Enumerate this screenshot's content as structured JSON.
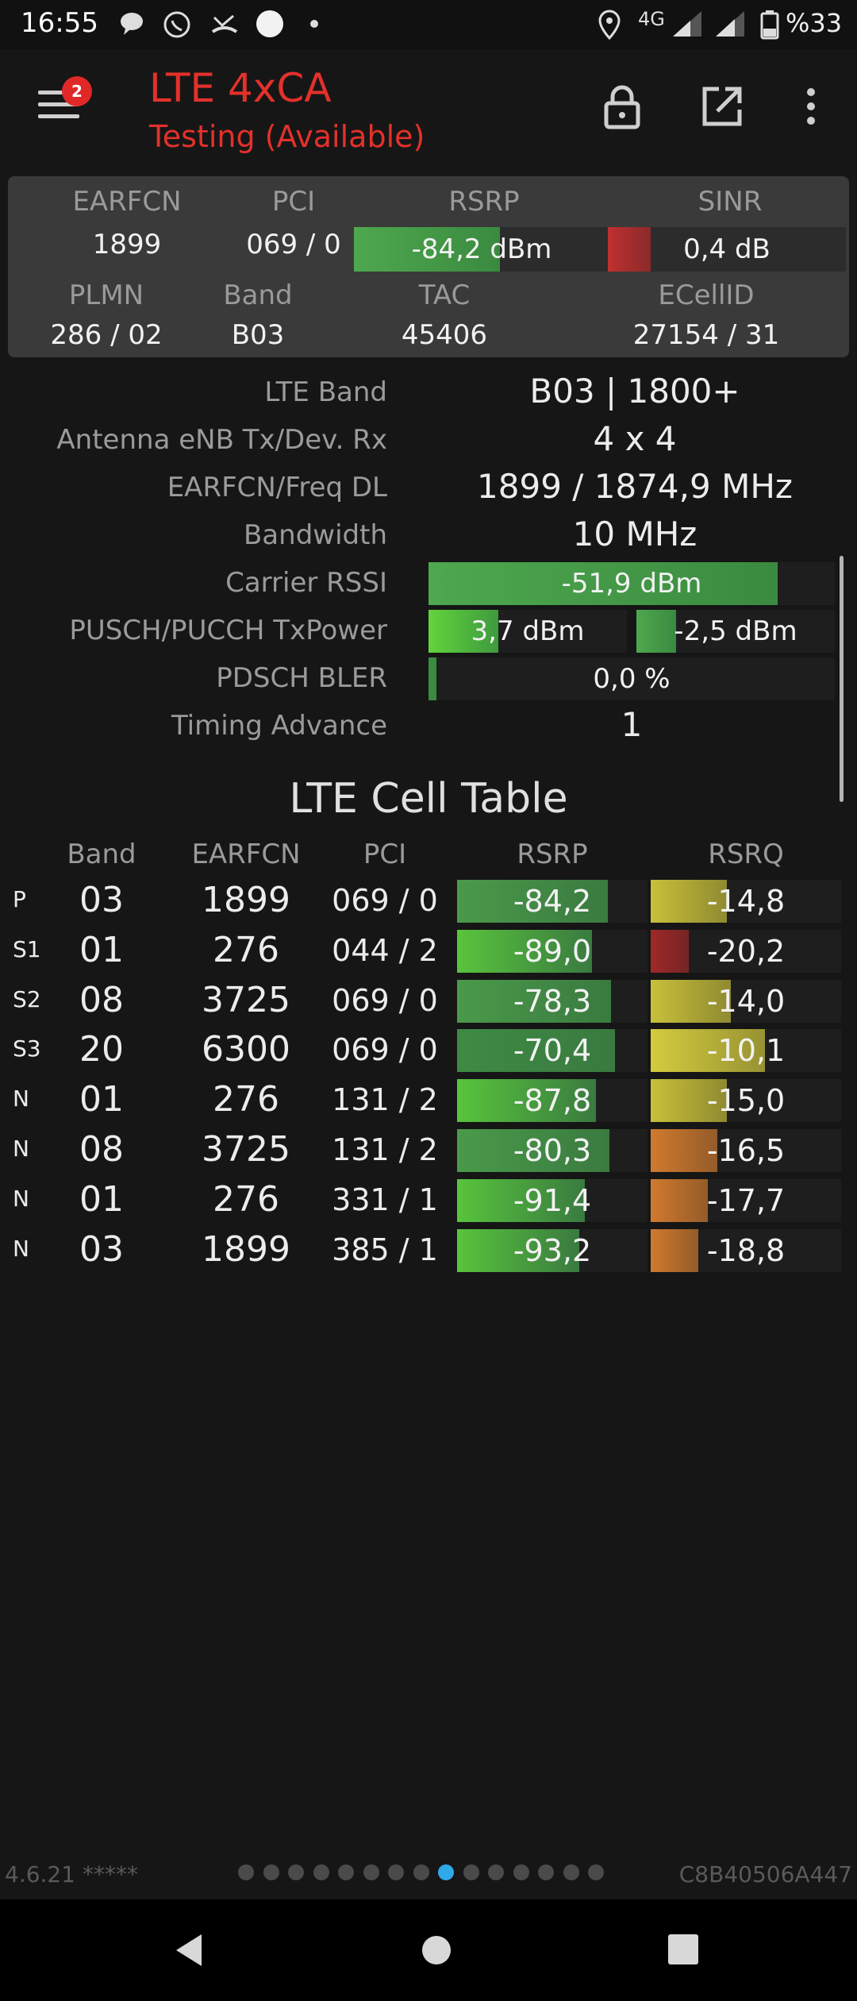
{
  "status_bar": {
    "time": "16:55",
    "network": "4G",
    "battery": "%33"
  },
  "app": {
    "title": "LTE 4xCA",
    "subtitle": "Testing (Available)",
    "notification_count": "2"
  },
  "summary": {
    "headers": [
      "EARFCN",
      "PCI",
      "RSRP",
      "SINR"
    ],
    "earfcn": "1899",
    "pci": "069 / 0",
    "rsrp": "-84,2 dBm",
    "sinr": "0,4 dB",
    "rsrp_fill": 0.57,
    "sinr_fill": 0.18,
    "headers2": [
      "PLMN",
      "Band",
      "TAC",
      "ECellID"
    ],
    "plmn": "286 / 02",
    "band": "B03",
    "tac": "45406",
    "ecellid": "27154 / 31"
  },
  "details": {
    "lte_band_label": "LTE Band",
    "lte_band": "B03 | 1800+",
    "antenna_label": "Antenna eNB Tx/Dev. Rx",
    "antenna": "4 x 4",
    "freq_label": "EARFCN/Freq DL",
    "freq": "1899 / 1874,9 MHz",
    "bw_label": "Bandwidth",
    "bw": "10 MHz",
    "rssi_label": "Carrier RSSI",
    "rssi": "-51,9 dBm",
    "rssi_fill": 0.86,
    "txpower_label": "PUSCH/PUCCH TxPower",
    "pusch": "3,7 dBm",
    "pucch": "-2,5 dBm",
    "pusch_fill": 0.35,
    "pucch_fill": 0.2,
    "bler_label": "PDSCH BLER",
    "bler": "0,0 %",
    "bler_fill": 0.02,
    "ta_label": "Timing Advance",
    "ta": "1"
  },
  "cell_table": {
    "title": "LTE Cell Table",
    "headers": [
      "Band",
      "EARFCN",
      "PCI",
      "RSRP",
      "RSRQ"
    ],
    "rows": [
      {
        "type": "P",
        "band": "03",
        "earfcn": "1899",
        "pci": "069 / 0",
        "rsrp": "-84,2",
        "rsrq": "-14,8",
        "rsrp_fill": 0.79,
        "rsrq_fill": 0.4,
        "rsrp_color": "#4a9a4a",
        "rsrq_color": "#c8c03a"
      },
      {
        "type": "S1",
        "band": "01",
        "earfcn": "276",
        "pci": "044 / 2",
        "rsrp": "-89,0",
        "rsrq": "-20,2",
        "rsrp_fill": 0.71,
        "rsrq_fill": 0.2,
        "rsrp_color": "#58c43c",
        "rsrq_color": "#a02828"
      },
      {
        "type": "S2",
        "band": "08",
        "earfcn": "3725",
        "pci": "069 / 0",
        "rsrp": "-78,3",
        "rsrq": "-14,0",
        "rsrp_fill": 0.81,
        "rsrq_fill": 0.42,
        "rsrp_color": "#4a9a4a",
        "rsrq_color": "#c8c03a"
      },
      {
        "type": "S3",
        "band": "20",
        "earfcn": "6300",
        "pci": "069 / 0",
        "rsrp": "-70,4",
        "rsrq": "-10,1",
        "rsrp_fill": 0.83,
        "rsrq_fill": 0.6,
        "rsrp_color": "#3e8a44",
        "rsrq_color": "#d4cc3e"
      },
      {
        "type": "N",
        "band": "01",
        "earfcn": "276",
        "pci": "131 / 2",
        "rsrp": "-87,8",
        "rsrq": "-15,0",
        "rsrp_fill": 0.73,
        "rsrq_fill": 0.4,
        "rsrp_color": "#58c43c",
        "rsrq_color": "#c8c03a"
      },
      {
        "type": "N",
        "band": "08",
        "earfcn": "3725",
        "pci": "131 / 2",
        "rsrp": "-80,3",
        "rsrq": "-16,5",
        "rsrp_fill": 0.8,
        "rsrq_fill": 0.35,
        "rsrp_color": "#4a9a4a",
        "rsrq_color": "#d07a2e"
      },
      {
        "type": "N",
        "band": "01",
        "earfcn": "276",
        "pci": "331 / 1",
        "rsrp": "-91,4",
        "rsrq": "-17,7",
        "rsrp_fill": 0.67,
        "rsrq_fill": 0.3,
        "rsrp_color": "#58c43c",
        "rsrq_color": "#d07a2e"
      },
      {
        "type": "N",
        "band": "03",
        "earfcn": "1899",
        "pci": "385 / 1",
        "rsrp": "-93,2",
        "rsrq": "-18,8",
        "rsrp_fill": 0.64,
        "rsrq_fill": 0.25,
        "rsrp_color": "#58c43c",
        "rsrq_color": "#d07a2e"
      }
    ]
  },
  "footer": {
    "version": "4.6.21 *****",
    "device_id": "C8B40506A447",
    "page_count": 15,
    "active_page": 8
  }
}
